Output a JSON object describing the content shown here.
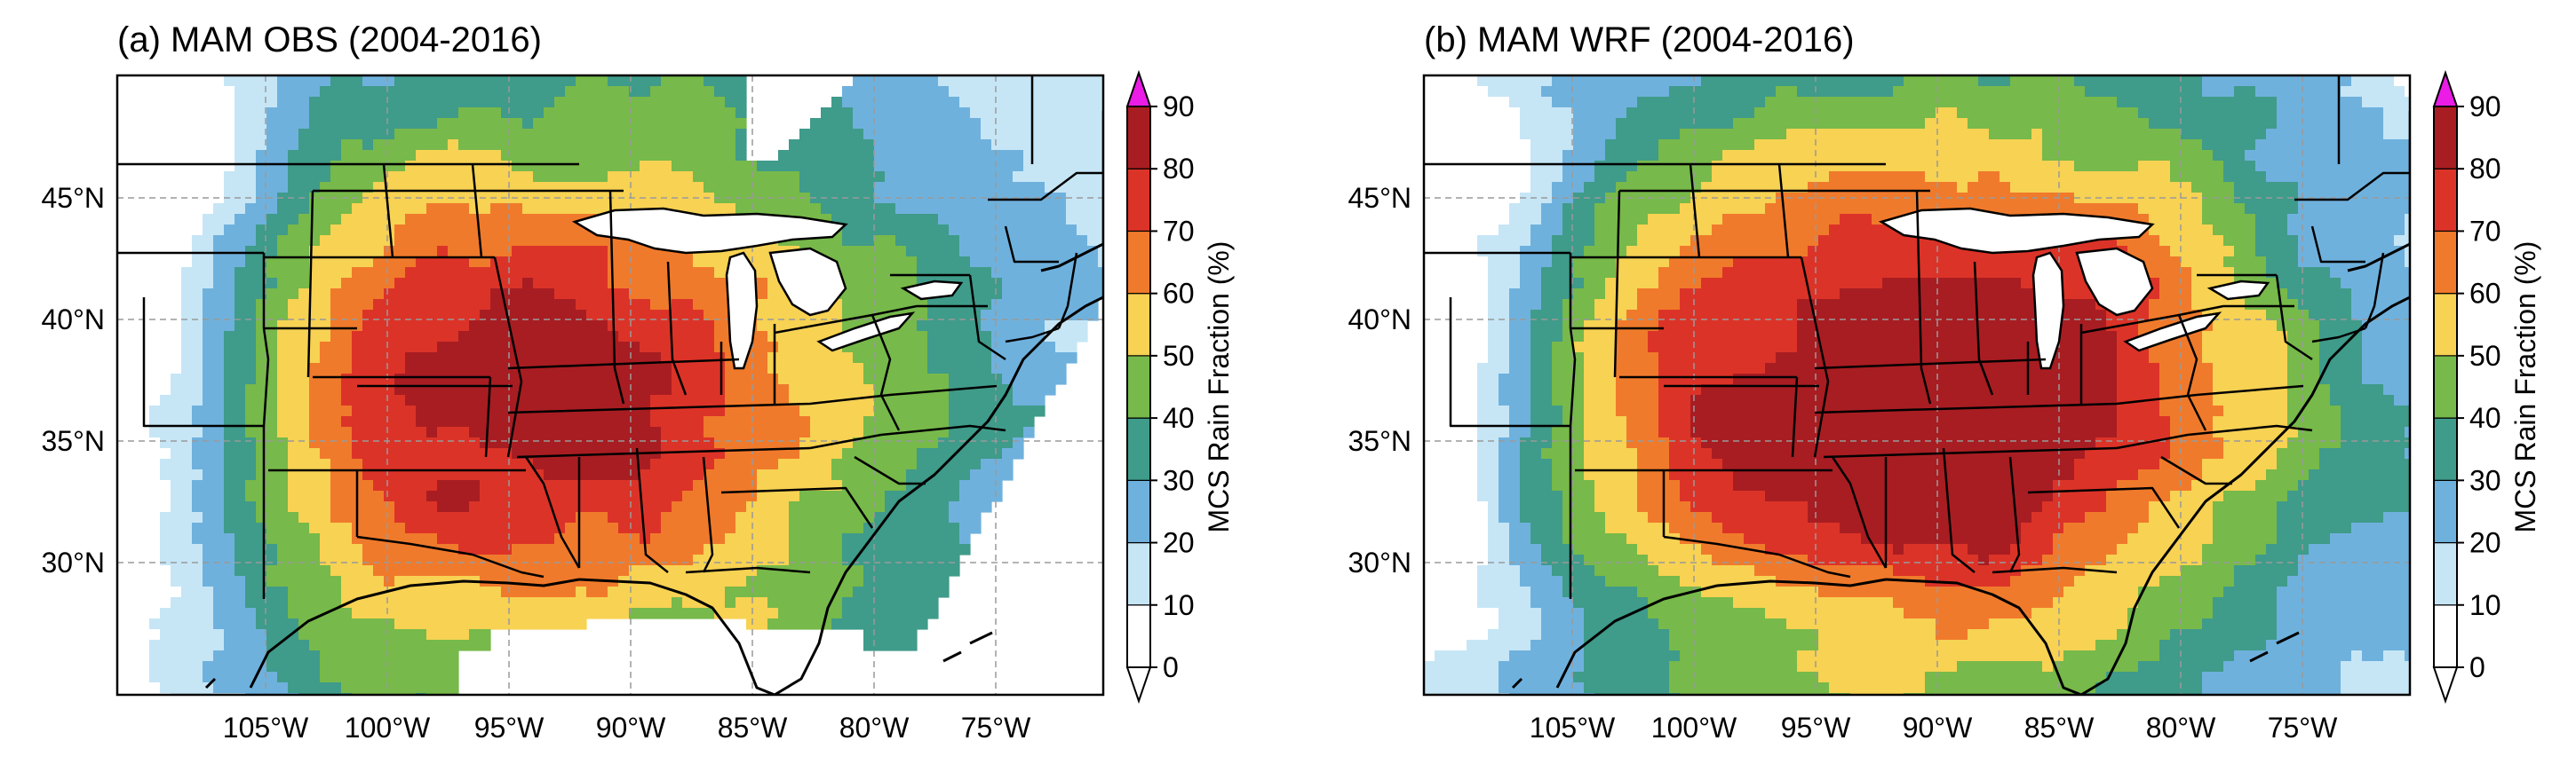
{
  "panels": [
    {
      "id": "obs",
      "title": "(a) MAM OBS (2004-2016)",
      "variant": "obs"
    },
    {
      "id": "wrf",
      "title": "(b) MAM WRF (2004-2016)",
      "variant": "wrf"
    }
  ],
  "lat_labels": [
    "45°N",
    "40°N",
    "35°N",
    "30°N"
  ],
  "lon_labels": [
    "105°W",
    "100°W",
    "95°W",
    "90°W",
    "85°W",
    "80°W",
    "75°W"
  ],
  "colorbar": {
    "label": "MCS Rain Fraction (%)",
    "ticks": [
      "0",
      "10",
      "20",
      "30",
      "40",
      "50",
      "60",
      "70",
      "80",
      "90"
    ],
    "colors": [
      "#ffffff",
      "#c6e6f6",
      "#6fb1dd",
      "#3f9b8a",
      "#77b94a",
      "#f7d253",
      "#f07a2b",
      "#dc3328",
      "#a81d22",
      "#ea1ce6"
    ]
  }
}
